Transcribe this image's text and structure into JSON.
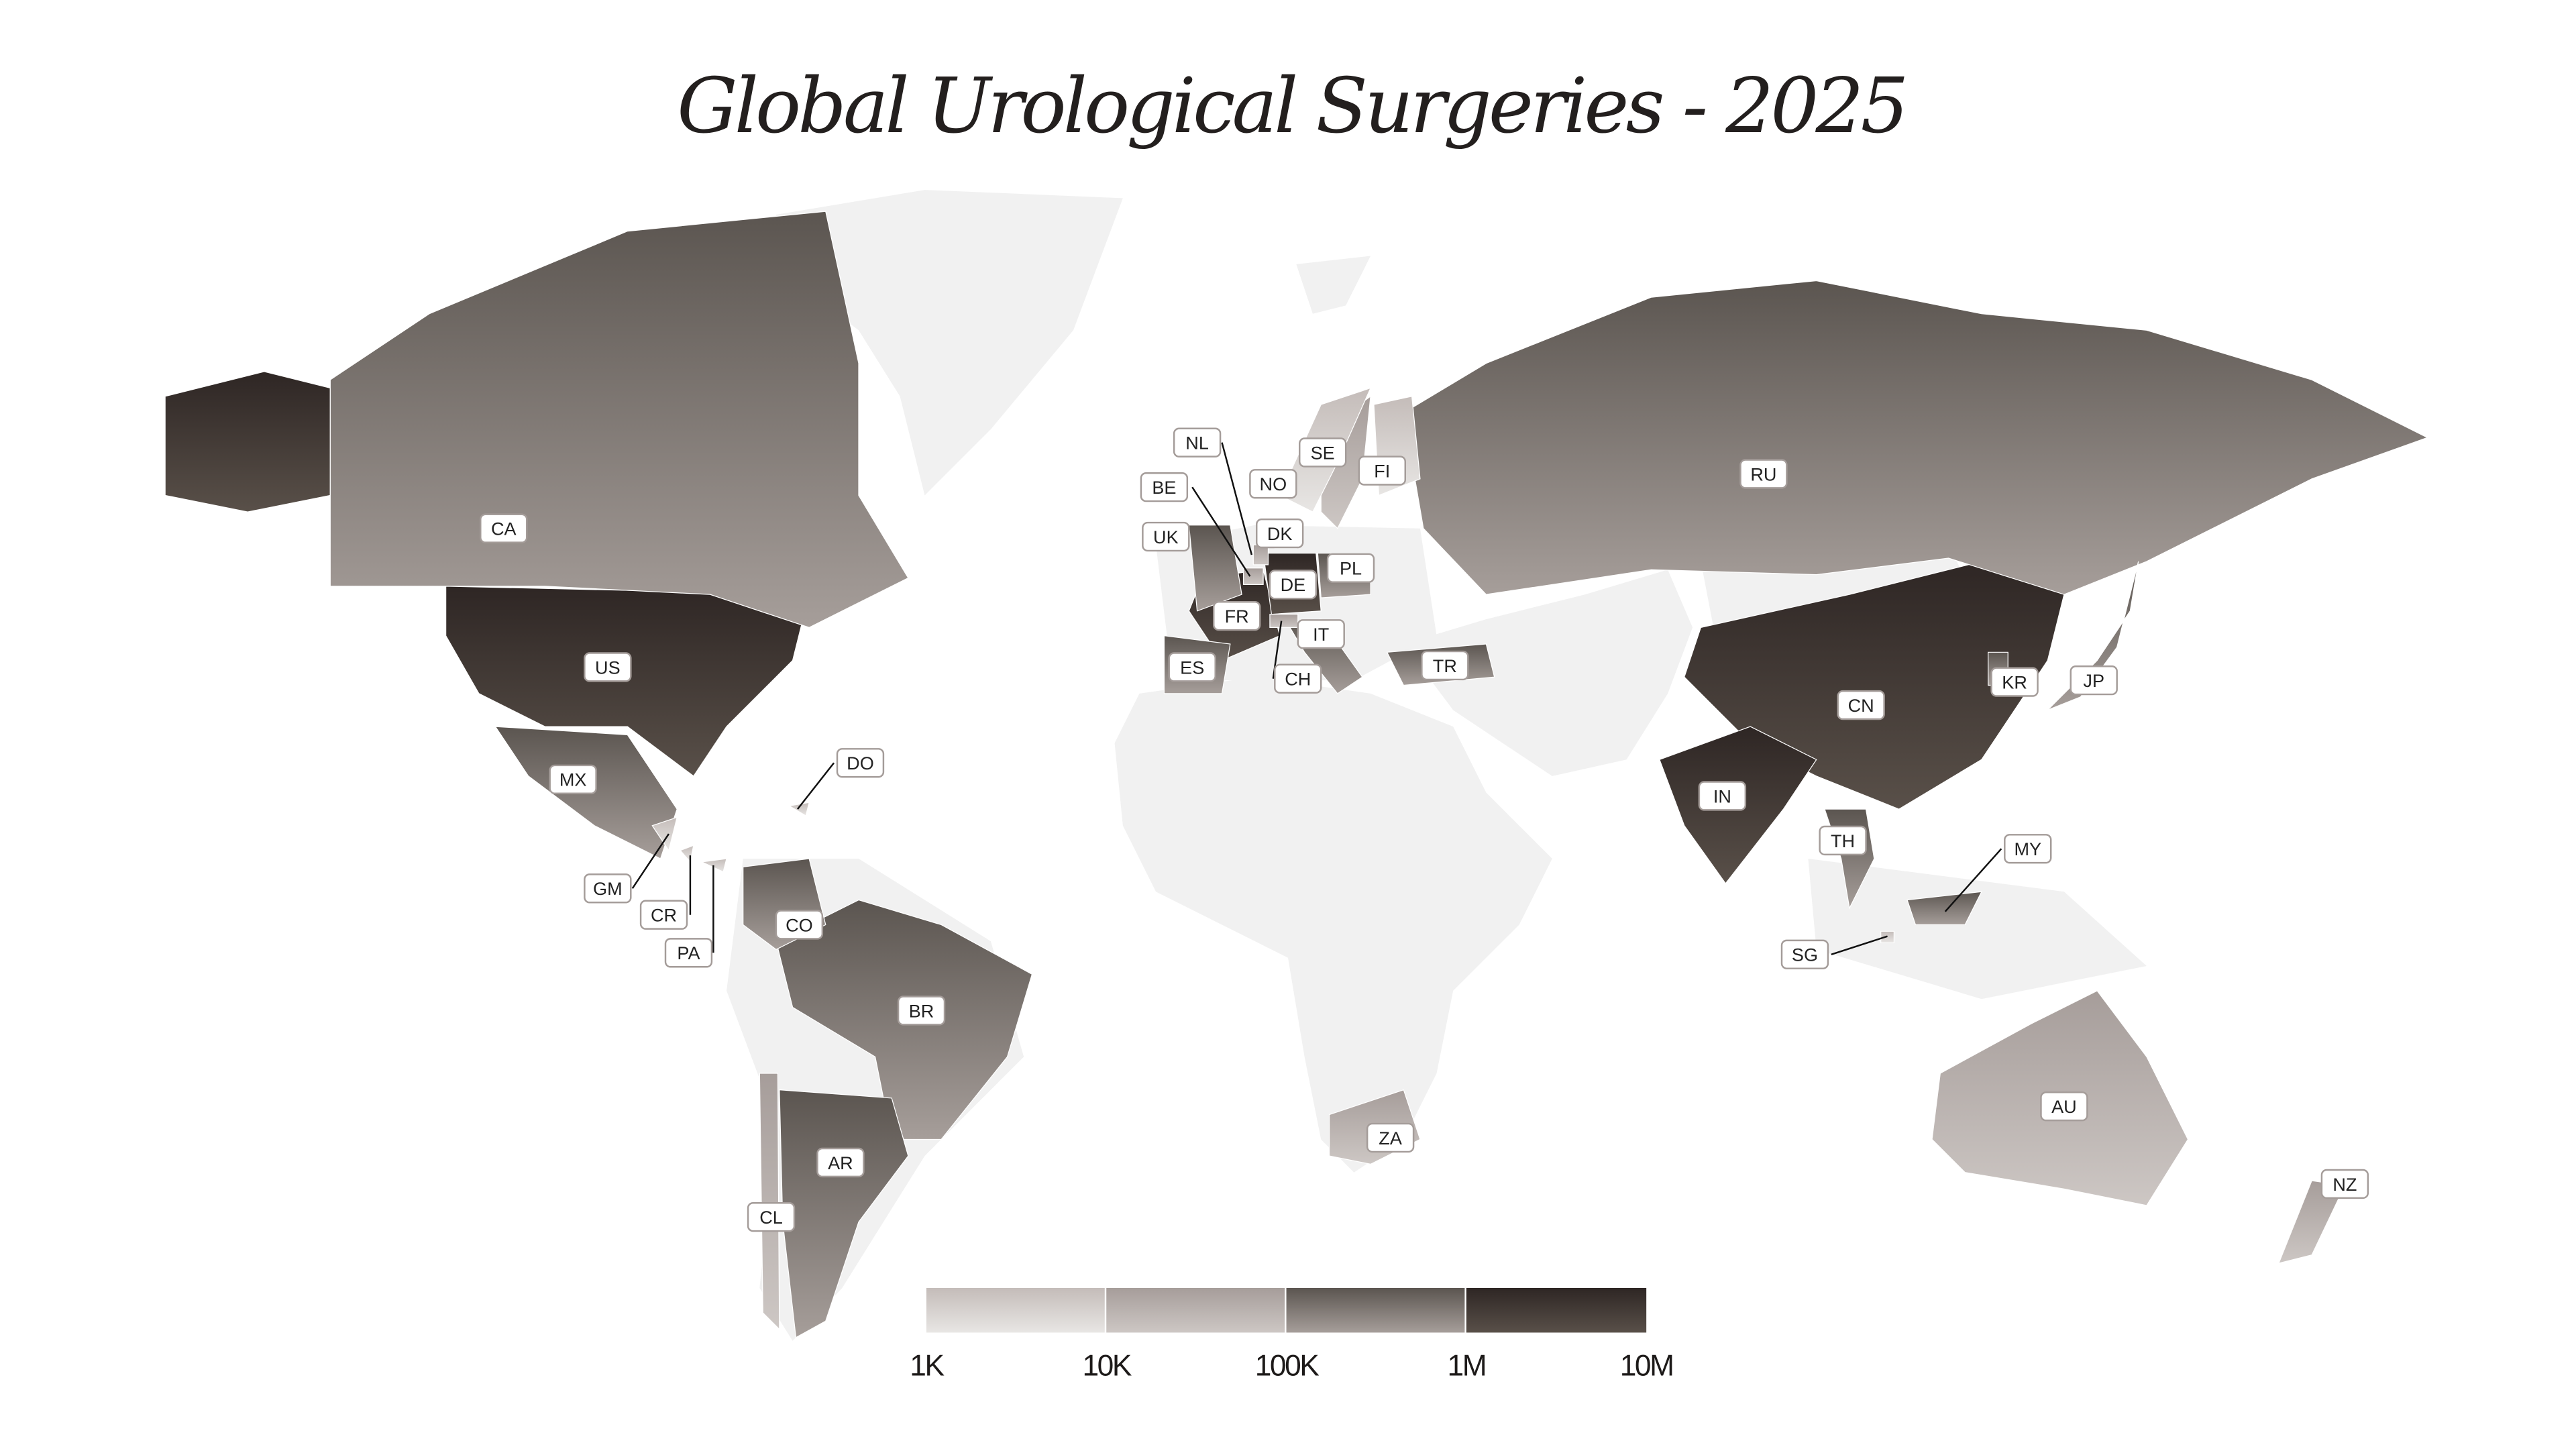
{
  "title": "Global Urological Surgeries - 2025",
  "legend": {
    "ticks": [
      "1K",
      "10K",
      "100K",
      "1M",
      "10M"
    ],
    "tier_colors": [
      "#dcd8d6",
      "#b0a8a5",
      "#6f6762",
      "#3b3431"
    ]
  },
  "no_data_color": "#f1f1f1",
  "chart_data": {
    "type": "choropleth",
    "title": "Global Urological Surgeries - 2025",
    "scale": "log",
    "bins": [
      "1K-10K",
      "10K-100K",
      "100K-1M",
      "1M-10M"
    ],
    "countries": [
      {
        "code": "US",
        "bin": "1M-10M"
      },
      {
        "code": "CN",
        "bin": "1M-10M"
      },
      {
        "code": "IN",
        "bin": "1M-10M"
      },
      {
        "code": "FR",
        "bin": "1M-10M"
      },
      {
        "code": "DE",
        "bin": "1M-10M"
      },
      {
        "code": "CA",
        "bin": "100K-1M"
      },
      {
        "code": "RU",
        "bin": "100K-1M"
      },
      {
        "code": "BR",
        "bin": "100K-1M"
      },
      {
        "code": "MX",
        "bin": "100K-1M"
      },
      {
        "code": "AR",
        "bin": "100K-1M"
      },
      {
        "code": "CO",
        "bin": "100K-1M"
      },
      {
        "code": "TR",
        "bin": "100K-1M"
      },
      {
        "code": "UK",
        "bin": "100K-1M"
      },
      {
        "code": "IT",
        "bin": "100K-1M"
      },
      {
        "code": "ES",
        "bin": "100K-1M"
      },
      {
        "code": "PL",
        "bin": "100K-1M"
      },
      {
        "code": "JP",
        "bin": "100K-1M"
      },
      {
        "code": "KR",
        "bin": "100K-1M"
      },
      {
        "code": "TH",
        "bin": "100K-1M"
      },
      {
        "code": "MY",
        "bin": "100K-1M"
      },
      {
        "code": "AU",
        "bin": "10K-100K"
      },
      {
        "code": "ZA",
        "bin": "10K-100K"
      },
      {
        "code": "CL",
        "bin": "10K-100K"
      },
      {
        "code": "SE",
        "bin": "10K-100K"
      },
      {
        "code": "NL",
        "bin": "10K-100K"
      },
      {
        "code": "BE",
        "bin": "10K-100K"
      },
      {
        "code": "CH",
        "bin": "10K-100K"
      },
      {
        "code": "NZ",
        "bin": "10K-100K"
      },
      {
        "code": "NO",
        "bin": "1K-10K"
      },
      {
        "code": "FI",
        "bin": "1K-10K"
      },
      {
        "code": "DK",
        "bin": "1K-10K"
      },
      {
        "code": "SG",
        "bin": "1K-10K"
      },
      {
        "code": "DO",
        "bin": "1K-10K"
      },
      {
        "code": "GM",
        "bin": "1K-10K"
      },
      {
        "code": "CR",
        "bin": "1K-10K"
      },
      {
        "code": "PA",
        "bin": "1K-10K"
      }
    ]
  }
}
